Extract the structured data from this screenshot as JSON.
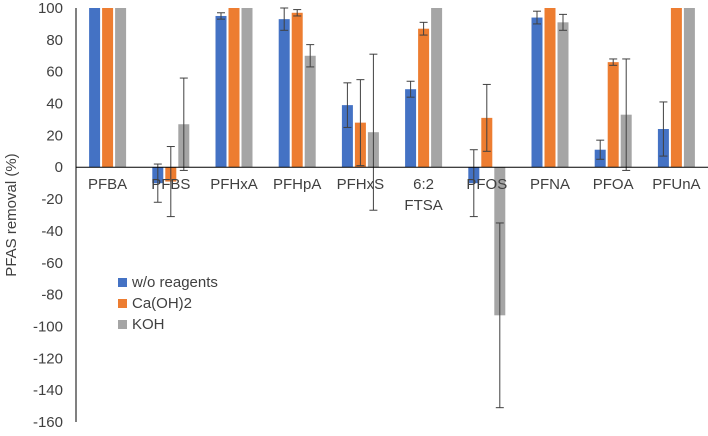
{
  "chart_data": {
    "type": "bar",
    "title": "",
    "xlabel": "",
    "ylabel": "PFAS removal (%)",
    "ylim": [
      -160,
      100
    ],
    "yticks": [
      100,
      80,
      60,
      40,
      20,
      0,
      -20,
      -40,
      -60,
      -80,
      -100,
      -120,
      -140,
      -160
    ],
    "grid": false,
    "legend_position": "lower-left",
    "categories": [
      [
        "PFBA"
      ],
      [
        "PFBS"
      ],
      [
        "PFHxA"
      ],
      [
        "PFHpA"
      ],
      [
        "PFHxS"
      ],
      [
        "6:2",
        "FTSA"
      ],
      [
        "PFOS"
      ],
      [
        "PFNA"
      ],
      [
        "PFOA"
      ],
      [
        "PFUnA"
      ]
    ],
    "series": [
      {
        "name": "w/o reagents",
        "color": "#4472C4",
        "values": [
          100,
          -10,
          95,
          93,
          39,
          49,
          -10,
          94,
          11,
          24
        ],
        "errors": [
          0,
          12,
          2,
          7,
          14,
          5,
          21,
          4,
          6,
          17
        ]
      },
      {
        "name": "Ca(OH)2",
        "color": "#ED7D31",
        "values": [
          100,
          -9,
          100,
          97,
          28,
          87,
          31,
          100,
          66,
          100
        ],
        "errors": [
          0,
          22,
          0,
          2,
          27,
          4,
          21,
          0,
          2,
          0
        ]
      },
      {
        "name": "KOH",
        "color": "#A5A5A5",
        "values": [
          100,
          27,
          100,
          70,
          22,
          100,
          -93,
          91,
          33,
          100
        ],
        "errors": [
          0,
          29,
          0,
          7,
          49,
          0,
          58,
          5,
          35,
          0
        ]
      }
    ]
  }
}
